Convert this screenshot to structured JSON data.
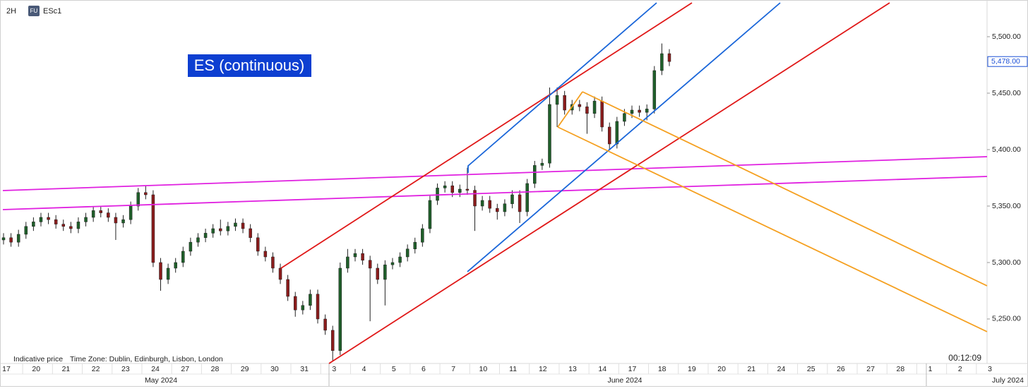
{
  "header": {
    "interval": "2H",
    "badge": "FU",
    "symbol": "ESc1"
  },
  "annotation": "ES (continuous)",
  "footer": {
    "note": "Indicative price",
    "timezone": "Time Zone: Dublin, Edinburgh, Lisbon, London",
    "clock": "00:12:09"
  },
  "chart_data": {
    "type": "candlestick",
    "ylim": [
      5210.6,
      5532.5
    ],
    "yticks": [
      {
        "value": 5250,
        "label": "5,250.00"
      },
      {
        "value": 5300,
        "label": "5,300.00"
      },
      {
        "value": 5350,
        "label": "5,350.00"
      },
      {
        "value": 5400,
        "label": "5,400.00"
      },
      {
        "value": 5450,
        "label": "5,450.00"
      },
      {
        "value": 5500,
        "label": "5,500.00"
      }
    ],
    "last_price": {
      "value": 5478,
      "label": "5,478.00"
    },
    "categories": [
      "17",
      "20",
      "21",
      "22",
      "23",
      "24",
      "27",
      "28",
      "29",
      "30",
      "31",
      "3",
      "4",
      "5",
      "6",
      "7",
      "10",
      "11",
      "12",
      "13",
      "14",
      "17",
      "18",
      "19",
      "20",
      "21",
      "24",
      "25",
      "26",
      "27",
      "28",
      "1",
      "2",
      "3"
    ],
    "months": [
      "May 2024",
      "June 2024",
      "July 2024"
    ],
    "up_color": "#1f5f2a",
    "down_color": "#8a1c1c",
    "open": [
      5320,
      5322,
      5318,
      5325,
      5332,
      5336,
      5340,
      5338,
      5334,
      5332,
      5330,
      5336,
      5340,
      5346,
      5344,
      5340,
      5335,
      5338,
      5350,
      5362,
      5360,
      5300,
      5285,
      5295,
      5300,
      5310,
      5318,
      5322,
      5326,
      5330,
      5328,
      5332,
      5335,
      5330,
      5322,
      5310,
      5305,
      5295,
      5285,
      5270,
      5258,
      5262,
      5272,
      5250,
      5240,
      5222,
      5295,
      5305,
      5308,
      5302,
      5295,
      5285,
      5298,
      5300,
      5305,
      5312,
      5318,
      5330,
      5355,
      5366,
      5368,
      5362,
      5365,
      5364,
      5350,
      5355,
      5348,
      5345,
      5352,
      5360,
      5345,
      5370,
      5386,
      5388,
      5440,
      5448,
      5435,
      5440,
      5438,
      5432,
      5443,
      5420,
      5405,
      5425,
      5432,
      5435,
      5433,
      5436,
      5470,
      5485
    ],
    "high": [
      5326,
      5326,
      5329,
      5336,
      5340,
      5344,
      5344,
      5342,
      5338,
      5336,
      5340,
      5344,
      5350,
      5350,
      5348,
      5344,
      5342,
      5354,
      5366,
      5368,
      5364,
      5304,
      5299,
      5304,
      5314,
      5322,
      5326,
      5330,
      5334,
      5338,
      5336,
      5339,
      5339,
      5334,
      5326,
      5314,
      5309,
      5299,
      5289,
      5274,
      5266,
      5276,
      5276,
      5254,
      5244,
      5300,
      5312,
      5312,
      5312,
      5306,
      5299,
      5302,
      5304,
      5309,
      5316,
      5322,
      5334,
      5359,
      5370,
      5372,
      5372,
      5369,
      5384,
      5368,
      5359,
      5359,
      5352,
      5356,
      5364,
      5364,
      5374,
      5390,
      5392,
      5455,
      5455,
      5452,
      5444,
      5444,
      5442,
      5447,
      5447,
      5424,
      5429,
      5436,
      5439,
      5439,
      5440,
      5474,
      5494,
      5489
    ],
    "low": [
      5316,
      5314,
      5314,
      5321,
      5328,
      5332,
      5334,
      5330,
      5328,
      5326,
      5326,
      5332,
      5336,
      5340,
      5336,
      5320,
      5331,
      5334,
      5346,
      5356,
      5296,
      5275,
      5281,
      5291,
      5296,
      5306,
      5314,
      5318,
      5322,
      5324,
      5324,
      5328,
      5326,
      5318,
      5306,
      5301,
      5291,
      5281,
      5266,
      5252,
      5254,
      5258,
      5246,
      5236,
      5213,
      5218,
      5291,
      5301,
      5298,
      5248,
      5281,
      5262,
      5294,
      5296,
      5301,
      5308,
      5314,
      5326,
      5351,
      5362,
      5358,
      5358,
      5360,
      5328,
      5346,
      5344,
      5338,
      5341,
      5348,
      5335,
      5341,
      5366,
      5382,
      5384,
      5420,
      5431,
      5431,
      5434,
      5414,
      5428,
      5416,
      5400,
      5401,
      5421,
      5428,
      5429,
      5426,
      5432,
      5466,
      5474
    ],
    "close": [
      5322,
      5318,
      5325,
      5332,
      5336,
      5340,
      5338,
      5334,
      5332,
      5330,
      5336,
      5340,
      5346,
      5344,
      5340,
      5335,
      5338,
      5350,
      5362,
      5360,
      5300,
      5285,
      5295,
      5300,
      5310,
      5318,
      5322,
      5326,
      5330,
      5328,
      5332,
      5335,
      5330,
      5322,
      5310,
      5305,
      5295,
      5285,
      5270,
      5258,
      5262,
      5272,
      5250,
      5240,
      5222,
      5295,
      5305,
      5308,
      5302,
      5295,
      5285,
      5298,
      5300,
      5305,
      5312,
      5318,
      5330,
      5355,
      5366,
      5368,
      5362,
      5365,
      5364,
      5350,
      5355,
      5348,
      5345,
      5352,
      5360,
      5345,
      5370,
      5386,
      5388,
      5440,
      5448,
      5435,
      5440,
      5438,
      5432,
      5443,
      5420,
      5405,
      5425,
      5432,
      5435,
      5433,
      5436,
      5470,
      5485,
      5478
    ]
  }
}
